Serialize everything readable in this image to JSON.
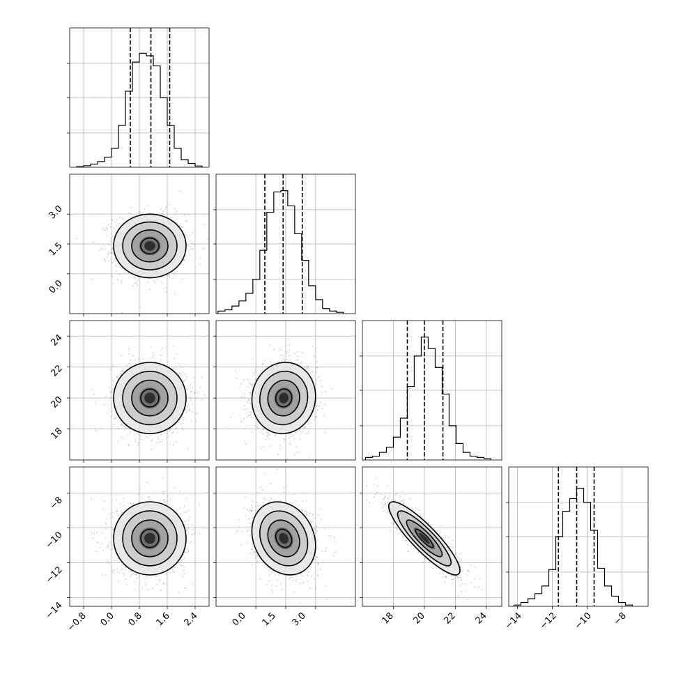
{
  "chart_data": [
    {
      "id": "hist_p0",
      "type": "histogram",
      "title": "",
      "xlabel": "",
      "ylabel": "",
      "xlim": [
        -1.2,
        2.8
      ],
      "bin_width": 0.2,
      "bin_starts": [
        -1.0,
        -0.8,
        -0.6,
        -0.4,
        -0.2,
        0.0,
        0.2,
        0.4,
        0.6,
        0.8,
        1.0,
        1.2,
        1.4,
        1.6,
        1.8,
        2.0,
        2.2,
        2.4
      ],
      "counts": [
        0.5,
        1.2,
        2.5,
        4.5,
        8,
        15,
        33,
        60,
        83,
        90,
        88,
        80,
        55,
        33,
        15,
        6,
        3,
        1
      ],
      "count_max": 100,
      "quantile_lines": [
        0.54,
        1.13,
        1.67
      ],
      "x_ticks": [
        -0.8,
        0.0,
        0.8,
        1.6,
        2.4
      ]
    },
    {
      "id": "hist_p1",
      "type": "histogram",
      "title": "",
      "xlabel": "",
      "ylabel": "",
      "xlim": [
        -2.0,
        5.0
      ],
      "bin_width": 0.35,
      "bin_starts": [
        -1.9,
        -1.55,
        -1.2,
        -0.85,
        -0.5,
        -0.15,
        0.2,
        0.55,
        0.9,
        1.25,
        1.6,
        1.95,
        2.3,
        2.65,
        3.0,
        3.35,
        3.7,
        4.05
      ],
      "counts": [
        2,
        3,
        6,
        10,
        16,
        27,
        50,
        80,
        96,
        97,
        85,
        63,
        42,
        22,
        11,
        4,
        2,
        1
      ],
      "count_max": 100,
      "quantile_lines": [
        0.45,
        1.37,
        2.33
      ],
      "x_ticks": [
        0.0,
        1.5,
        3.0
      ]
    },
    {
      "id": "hist_p2",
      "type": "histogram",
      "title": "",
      "xlabel": "",
      "ylabel": "",
      "xlim": [
        16.0,
        25.0
      ],
      "bin_width": 0.45,
      "bin_starts": [
        16.2,
        16.65,
        17.1,
        17.55,
        18.0,
        18.45,
        18.9,
        19.35,
        19.8,
        20.25,
        20.7,
        21.15,
        21.6,
        22.05,
        22.5,
        22.95,
        23.4,
        23.85
      ],
      "counts": [
        2,
        3,
        6,
        10,
        18,
        33,
        58,
        82,
        97,
        88,
        73,
        52,
        27,
        13,
        6,
        3,
        2,
        1
      ],
      "count_max": 100,
      "quantile_lines": [
        18.9,
        20.0,
        21.2
      ],
      "x_ticks": [
        18,
        20,
        22,
        24
      ]
    },
    {
      "id": "hist_p3",
      "type": "histogram",
      "title": "",
      "xlabel": "",
      "ylabel": "",
      "xlim": [
        -14.5,
        -6.5
      ],
      "bin_width": 0.4,
      "bin_starts": [
        -14.2,
        -13.8,
        -13.4,
        -13.0,
        -12.6,
        -12.2,
        -11.8,
        -11.4,
        -11.0,
        -10.6,
        -10.2,
        -9.8,
        -9.4,
        -9.0,
        -8.6,
        -8.2,
        -7.8
      ],
      "counts": [
        1,
        3,
        6,
        10,
        16,
        29,
        55,
        75,
        85,
        93,
        82,
        60,
        30,
        16,
        8,
        3,
        1
      ],
      "count_max": 100,
      "quantile_lines": [
        -11.65,
        -10.6,
        -9.6
      ],
      "x_ticks": [
        -14,
        -12,
        -10,
        -8
      ]
    },
    {
      "id": "pair_p1_vs_p0",
      "type": "scatter",
      "title": "",
      "xlabel": "",
      "ylabel": "",
      "xlim": [
        -1.2,
        2.8
      ],
      "ylim": [
        -2.0,
        5.0
      ],
      "center": [
        1.1,
        1.4
      ],
      "spread": [
        0.52,
        0.8
      ],
      "rho": 0.0,
      "y_ticks": [
        0.0,
        1.5,
        3.0
      ]
    },
    {
      "id": "pair_p2_vs_p0",
      "type": "scatter",
      "title": "",
      "xlabel": "",
      "ylabel": "",
      "xlim": [
        -1.2,
        2.8
      ],
      "ylim": [
        16.0,
        25.0
      ],
      "center": [
        1.1,
        20.0
      ],
      "spread": [
        0.52,
        1.15
      ],
      "rho": 0.0,
      "y_ticks": [
        18,
        20,
        22,
        24
      ]
    },
    {
      "id": "pair_p2_vs_p1",
      "type": "scatter",
      "title": "",
      "xlabel": "",
      "ylabel": "",
      "xlim": [
        -2.0,
        5.0
      ],
      "ylim": [
        16.0,
        25.0
      ],
      "center": [
        1.4,
        20.0
      ],
      "spread": [
        0.8,
        1.15
      ],
      "rho": 0.05,
      "y_ticks": []
    },
    {
      "id": "pair_p3_vs_p0",
      "type": "scatter",
      "title": "",
      "xlabel": "",
      "ylabel": "",
      "xlim": [
        -1.2,
        2.8
      ],
      "ylim": [
        -14.5,
        -6.5
      ],
      "center": [
        1.1,
        -10.6
      ],
      "spread": [
        0.52,
        1.05
      ],
      "rho": 0.0,
      "y_ticks": [
        -14,
        -12,
        -10,
        -8
      ],
      "x_ticks": [
        -0.8,
        0.0,
        0.8,
        1.6,
        2.4
      ]
    },
    {
      "id": "pair_p3_vs_p1",
      "type": "scatter",
      "title": "",
      "xlabel": "",
      "ylabel": "",
      "xlim": [
        -2.0,
        5.0
      ],
      "ylim": [
        -14.5,
        -6.5
      ],
      "center": [
        1.4,
        -10.6
      ],
      "spread": [
        0.8,
        1.05
      ],
      "rho": -0.2,
      "y_ticks": [],
      "x_ticks": [
        0.0,
        1.5,
        3.0
      ]
    },
    {
      "id": "pair_p3_vs_p2",
      "type": "scatter",
      "title": "",
      "xlabel": "",
      "ylabel": "",
      "xlim": [
        16.0,
        25.0
      ],
      "ylim": [
        -14.5,
        -6.5
      ],
      "center": [
        20.0,
        -10.6
      ],
      "spread": [
        1.15,
        1.05
      ],
      "rho": -0.88,
      "y_ticks": [],
      "x_ticks": [
        18,
        20,
        22,
        24
      ]
    }
  ],
  "labels": {
    "x": {
      "p0": [
        "−0.8",
        "0.0",
        "0.8",
        "1.6",
        "2.4"
      ],
      "p1": [
        "0.0",
        "1.5",
        "3.0"
      ],
      "p2": [
        "18",
        "20",
        "22",
        "24"
      ],
      "p3": [
        "−14",
        "−12",
        "−10",
        "−8"
      ]
    },
    "y": {
      "p1": [
        "0.0",
        "1.5",
        "3.0"
      ],
      "p2": [
        "18",
        "20",
        "22",
        "24"
      ],
      "p3": [
        "−14",
        "−12",
        "−10",
        "−8"
      ]
    }
  },
  "style": {
    "hist_color": "#000000",
    "grid_color": "#b0b0b0",
    "scatter_color": "#8c8c8c",
    "contour_color": "#000000"
  }
}
